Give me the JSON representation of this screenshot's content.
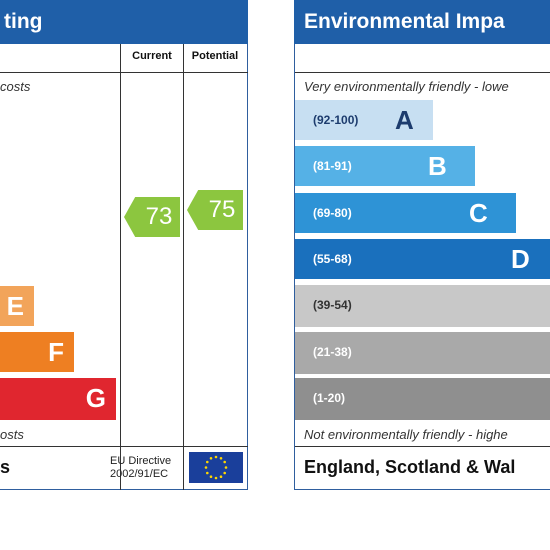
{
  "energy": {
    "title_visible": "ting",
    "col_current": "Current",
    "col_potential": "Potential",
    "top_note": "costs",
    "bottom_note": "osts",
    "bands": [
      {
        "letter": "E",
        "color": "#f2a45a"
      },
      {
        "letter": "F",
        "color": "#ee7f22"
      },
      {
        "letter": "G",
        "color": "#e0262f"
      }
    ],
    "current_rating": "73",
    "potential_rating": "75",
    "arrow_color": "#8cc63f",
    "footer_fragment": "s",
    "eu_directive_line1": "EU Directive",
    "eu_directive_line2": "2002/91/EC",
    "header_color": "#1f5fa8"
  },
  "environment": {
    "title": "Environmental Impa",
    "top_note": "Very environmentally friendly - lowe",
    "bottom_note": "Not environmentally friendly - highe",
    "footer": "England, Scotland & Wal",
    "bands": [
      {
        "range": "(92-100)",
        "letter": "A",
        "color": "#c7dff2",
        "text_color": "#1d3c6e"
      },
      {
        "range": "(81-91)",
        "letter": "B",
        "color": "#55b1e6",
        "text_color": "#ffffff"
      },
      {
        "range": "(69-80)",
        "letter": "C",
        "color": "#2e93d6",
        "text_color": "#ffffff"
      },
      {
        "range": "(55-68)",
        "letter": "D",
        "color": "#1a70bd",
        "text_color": "#ffffff"
      },
      {
        "range": "(39-54)",
        "letter": "",
        "color": "#c8c8c8",
        "text_color": "#333333"
      },
      {
        "range": "(21-38)",
        "letter": "",
        "color": "#a9a9a9",
        "text_color": "#ffffff"
      },
      {
        "range": "(1-20)",
        "letter": "",
        "color": "#8f8f8f",
        "text_color": "#ffffff"
      }
    ]
  }
}
